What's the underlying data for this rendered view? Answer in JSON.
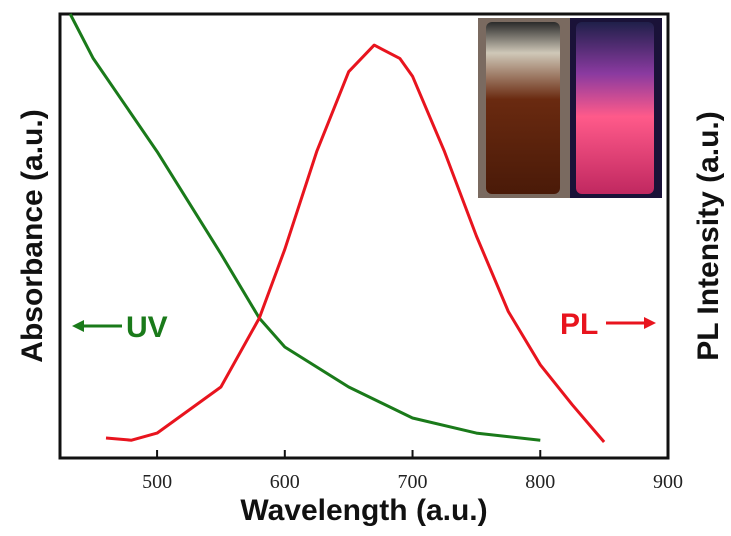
{
  "chart_data": {
    "type": "line",
    "xlabel": "Wavelength (a.u.)",
    "ylabel": "Absorbance (a.u.)",
    "y2label": "PL Intensity (a.u.)",
    "xlim": [
      424,
      900
    ],
    "xticks": [
      500,
      600,
      700,
      800,
      900
    ],
    "ylim": [
      0,
      100
    ],
    "y2lim": [
      0,
      100
    ],
    "series": [
      {
        "name": "UV",
        "color": "#1a7a1a",
        "x": [
          432,
          450,
          500,
          550,
          580,
          600,
          650,
          700,
          750,
          800
        ],
        "values": [
          100,
          90,
          69,
          46,
          31.5,
          25,
          16,
          9,
          5.6,
          4
        ]
      },
      {
        "name": "PL",
        "color": "#e8141e",
        "axis": "y2",
        "x": [
          460,
          480,
          500,
          550,
          580,
          600,
          625,
          650,
          670,
          690,
          700,
          725,
          750,
          775,
          800,
          825,
          850
        ],
        "values": [
          4.5,
          4,
          5.6,
          16,
          31.5,
          47,
          69,
          87,
          93,
          90,
          86,
          69,
          50,
          33,
          21,
          12,
          3.6
        ]
      }
    ]
  }
}
